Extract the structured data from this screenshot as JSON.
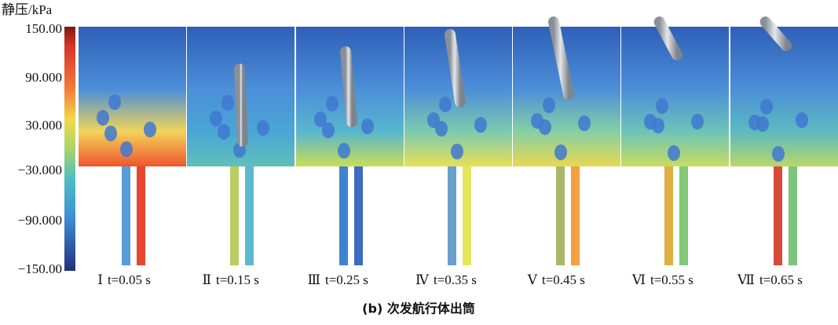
{
  "colorbar": {
    "title": "静压/kPa",
    "ticks": [
      "150.00",
      "90.000",
      "30.000",
      "−30.000",
      "−90.000",
      "−150.00"
    ]
  },
  "panels": [
    {
      "numeral": "Ⅰ",
      "time": "t=0.05 s"
    },
    {
      "numeral": "Ⅱ",
      "time": "t=0.15 s"
    },
    {
      "numeral": "Ⅲ",
      "time": "t=0.25 s"
    },
    {
      "numeral": "Ⅳ",
      "time": "t=0.35 s"
    },
    {
      "numeral": "Ⅴ",
      "time": "t=0.45 s"
    },
    {
      "numeral": "Ⅵ",
      "time": "t=0.55 s"
    },
    {
      "numeral": "Ⅶ",
      "time": "t=0.65 s"
    }
  ],
  "caption": "(b) 次发航行体出筒"
}
